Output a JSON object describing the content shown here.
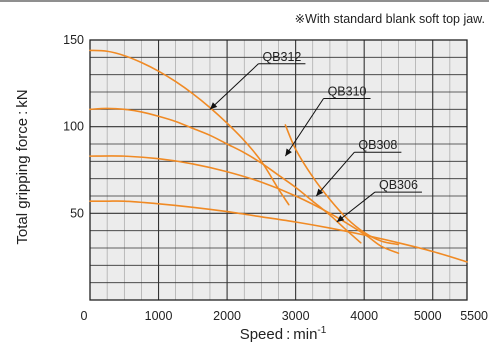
{
  "note": "※With standard blank soft top jaw.",
  "chart_data": {
    "type": "line",
    "title": "",
    "xlabel": "Speed : min",
    "xlabel_superscript": "-1",
    "ylabel": "Total gripping force : kN",
    "xlim": [
      0,
      5500
    ],
    "ylim": [
      0,
      150
    ],
    "grid": true,
    "x_grid_step": 250,
    "y_grid_step": 10,
    "x_ticks": [
      {
        "value": 0,
        "label": "0"
      },
      {
        "value": 1000,
        "label": "1000"
      },
      {
        "value": 2000,
        "label": "2000"
      },
      {
        "value": 3000,
        "label": "3000"
      },
      {
        "value": 4000,
        "label": "4000"
      },
      {
        "value": 5000,
        "label": "5000"
      },
      {
        "value": 5500,
        "label": "5500"
      }
    ],
    "y_ticks": [
      {
        "value": 50,
        "label": "50"
      },
      {
        "value": 100,
        "label": "100"
      },
      {
        "value": 150,
        "label": "150"
      }
    ],
    "line_color": "#f08a24",
    "series": [
      {
        "name": "QB312",
        "x": [
          0,
          250,
          500,
          750,
          1000,
          1250,
          1500,
          1750,
          2000,
          2250,
          2500,
          2750,
          2900
        ],
        "y": [
          144,
          143.5,
          141,
          137,
          132,
          126,
          119,
          111,
          102,
          92,
          80,
          64,
          55
        ],
        "label_point": [
          2800,
          138
        ],
        "pointer_to": [
          1750,
          110
        ]
      },
      {
        "name": "QB310",
        "x": [
          0,
          250,
          500,
          750,
          1000,
          1250,
          1500,
          1750,
          2000,
          2250,
          2500,
          2750,
          3000,
          3250,
          3500,
          3750,
          3950
        ],
        "y": [
          110,
          110.5,
          110,
          108.5,
          106,
          103,
          99,
          95,
          90,
          85,
          79,
          72,
          65,
          57,
          49,
          40,
          33
        ],
        "label_point": [
          3750,
          118
        ],
        "pointer_to": [
          2850,
          83
        ]
      },
      {
        "name": "QB308",
        "x": [
          0,
          500,
          1000,
          1500,
          2000,
          2500,
          3000,
          3500,
          4000,
          4250,
          4500
        ],
        "y": [
          83,
          83,
          81.5,
          78.5,
          74,
          68,
          60,
          50,
          38,
          31,
          27
        ],
        "label_point": [
          4200,
          87
        ],
        "pointer_to": [
          3300,
          60
        ]
      },
      {
        "name": "QB306",
        "x": [
          0,
          250,
          500,
          1000,
          1500,
          2000,
          2500,
          3000,
          3500,
          4000,
          4500,
          5000,
          5500
        ],
        "y": [
          57,
          57,
          57,
          55.5,
          53.5,
          51,
          48,
          45,
          41.5,
          37.5,
          33,
          28,
          22
        ],
        "label_point": [
          4500,
          64
        ],
        "pointer_to": [
          3600,
          45
        ]
      },
      {
        "name": "",
        "x": [
          2850,
          3000,
          3250,
          3500,
          3750,
          4000,
          4250,
          4500
        ],
        "y": [
          101,
          87,
          71,
          58,
          47,
          39,
          34,
          32
        ]
      }
    ]
  }
}
